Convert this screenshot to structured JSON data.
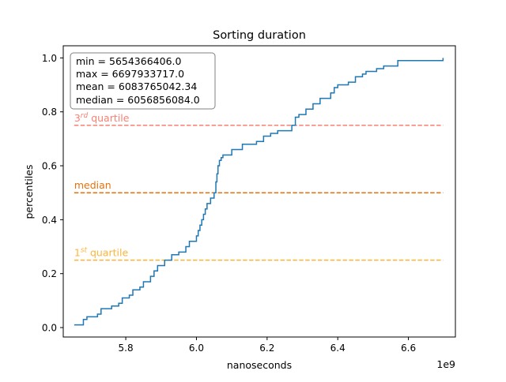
{
  "chart_data": {
    "type": "line",
    "title": "Sorting duration",
    "xlabel": "nanoseconds",
    "ylabel": "percentiles",
    "x_offset_label": "1e9",
    "xlim": [
      5.623,
      6.733
    ],
    "ylim": [
      -0.035,
      1.045
    ],
    "xticks": [
      5.8,
      6.0,
      6.2,
      6.4,
      6.6
    ],
    "xtick_labels": [
      "5.8",
      "6.0",
      "6.2",
      "6.4",
      "6.6"
    ],
    "yticks": [
      0.0,
      0.2,
      0.4,
      0.6,
      0.8,
      1.0
    ],
    "ytick_labels": [
      "0.0",
      "0.2",
      "0.4",
      "0.6",
      "0.8",
      "1.0"
    ],
    "grid": false,
    "stats_box": {
      "min": "min = 5654366406.0",
      "max": "max = 6697933717.0",
      "mean": "mean = 6083765042.34",
      "median": "median = 6056856084.0"
    },
    "reference_lines": [
      {
        "name": "q3",
        "label_main": "3",
        "label_sup": "rd",
        "label_tail": " quartile",
        "y": 0.75,
        "color": "#fa8072"
      },
      {
        "name": "median",
        "label_main": "median",
        "label_sup": "",
        "label_tail": "",
        "y": 0.5,
        "color": "#e8710a"
      },
      {
        "name": "q1",
        "label_main": "1",
        "label_sup": "st",
        "label_tail": " quartile",
        "y": 0.25,
        "color": "#ffb33a"
      }
    ],
    "series": [
      {
        "color": "#1f77b4",
        "points": [
          [
            5.654,
            0.01
          ],
          [
            5.68,
            0.01
          ],
          [
            5.68,
            0.03
          ],
          [
            5.69,
            0.03
          ],
          [
            5.69,
            0.04
          ],
          [
            5.72,
            0.04
          ],
          [
            5.72,
            0.05
          ],
          [
            5.73,
            0.05
          ],
          [
            5.73,
            0.07
          ],
          [
            5.76,
            0.07
          ],
          [
            5.76,
            0.08
          ],
          [
            5.78,
            0.08
          ],
          [
            5.78,
            0.09
          ],
          [
            5.79,
            0.09
          ],
          [
            5.79,
            0.11
          ],
          [
            5.81,
            0.11
          ],
          [
            5.81,
            0.12
          ],
          [
            5.82,
            0.12
          ],
          [
            5.82,
            0.14
          ],
          [
            5.84,
            0.14
          ],
          [
            5.84,
            0.15
          ],
          [
            5.85,
            0.15
          ],
          [
            5.85,
            0.17
          ],
          [
            5.87,
            0.17
          ],
          [
            5.87,
            0.19
          ],
          [
            5.88,
            0.19
          ],
          [
            5.88,
            0.21
          ],
          [
            5.89,
            0.21
          ],
          [
            5.89,
            0.23
          ],
          [
            5.91,
            0.23
          ],
          [
            5.91,
            0.25
          ],
          [
            5.93,
            0.25
          ],
          [
            5.93,
            0.27
          ],
          [
            5.95,
            0.27
          ],
          [
            5.95,
            0.28
          ],
          [
            5.97,
            0.28
          ],
          [
            5.97,
            0.3
          ],
          [
            5.98,
            0.3
          ],
          [
            5.98,
            0.32
          ],
          [
            6.0,
            0.32
          ],
          [
            6.0,
            0.34
          ],
          [
            6.005,
            0.34
          ],
          [
            6.005,
            0.36
          ],
          [
            6.01,
            0.36
          ],
          [
            6.01,
            0.38
          ],
          [
            6.015,
            0.38
          ],
          [
            6.015,
            0.4
          ],
          [
            6.02,
            0.4
          ],
          [
            6.02,
            0.42
          ],
          [
            6.025,
            0.42
          ],
          [
            6.025,
            0.44
          ],
          [
            6.03,
            0.44
          ],
          [
            6.03,
            0.46
          ],
          [
            6.04,
            0.46
          ],
          [
            6.04,
            0.48
          ],
          [
            6.05,
            0.48
          ],
          [
            6.05,
            0.5
          ],
          [
            6.055,
            0.5
          ],
          [
            6.055,
            0.54
          ],
          [
            6.058,
            0.54
          ],
          [
            6.058,
            0.57
          ],
          [
            6.061,
            0.57
          ],
          [
            6.061,
            0.6
          ],
          [
            6.065,
            0.6
          ],
          [
            6.065,
            0.62
          ],
          [
            6.07,
            0.62
          ],
          [
            6.07,
            0.63
          ],
          [
            6.075,
            0.63
          ],
          [
            6.075,
            0.64
          ],
          [
            6.1,
            0.64
          ],
          [
            6.1,
            0.66
          ],
          [
            6.13,
            0.66
          ],
          [
            6.13,
            0.68
          ],
          [
            6.17,
            0.68
          ],
          [
            6.17,
            0.69
          ],
          [
            6.19,
            0.69
          ],
          [
            6.19,
            0.71
          ],
          [
            6.21,
            0.71
          ],
          [
            6.21,
            0.72
          ],
          [
            6.23,
            0.72
          ],
          [
            6.23,
            0.73
          ],
          [
            6.27,
            0.73
          ],
          [
            6.27,
            0.75
          ],
          [
            6.28,
            0.75
          ],
          [
            6.28,
            0.78
          ],
          [
            6.29,
            0.78
          ],
          [
            6.29,
            0.79
          ],
          [
            6.31,
            0.79
          ],
          [
            6.31,
            0.81
          ],
          [
            6.33,
            0.81
          ],
          [
            6.33,
            0.83
          ],
          [
            6.35,
            0.83
          ],
          [
            6.35,
            0.85
          ],
          [
            6.38,
            0.85
          ],
          [
            6.38,
            0.87
          ],
          [
            6.39,
            0.87
          ],
          [
            6.39,
            0.89
          ],
          [
            6.4,
            0.89
          ],
          [
            6.4,
            0.9
          ],
          [
            6.43,
            0.9
          ],
          [
            6.43,
            0.91
          ],
          [
            6.45,
            0.91
          ],
          [
            6.45,
            0.93
          ],
          [
            6.47,
            0.93
          ],
          [
            6.47,
            0.94
          ],
          [
            6.48,
            0.94
          ],
          [
            6.48,
            0.95
          ],
          [
            6.51,
            0.95
          ],
          [
            6.51,
            0.96
          ],
          [
            6.53,
            0.96
          ],
          [
            6.53,
            0.97
          ],
          [
            6.57,
            0.97
          ],
          [
            6.57,
            0.99
          ],
          [
            6.698,
            0.99
          ],
          [
            6.698,
            1.0
          ]
        ]
      }
    ]
  }
}
